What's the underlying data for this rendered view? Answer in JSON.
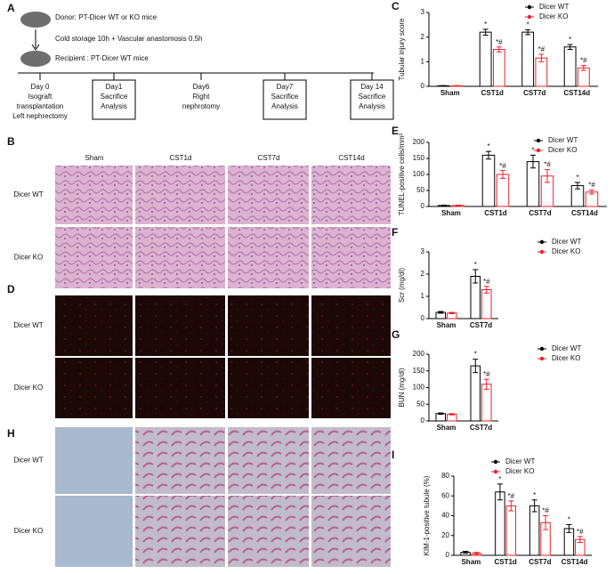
{
  "diagram": {
    "panel": "A",
    "donor": "Donor: PT-Dicer WT or KO mice",
    "storage": "Cold storage 10h  + Vascular anastomosis 0.5h",
    "recipient": "Recipient : PT-Dicer WT mice",
    "steps": [
      {
        "lines": [
          "Day 0",
          "Isograft",
          "transplantation",
          "Left nephrectomy"
        ],
        "boxed": false
      },
      {
        "lines": [
          "Day1",
          "Sacrifice",
          "Analysis"
        ],
        "boxed": true
      },
      {
        "lines": [
          "Day6",
          "Right",
          "nephrotomy"
        ],
        "boxed": false
      },
      {
        "lines": [
          "Day7",
          "Sacrifice",
          "Analysis"
        ],
        "boxed": true
      },
      {
        "lines": [
          "Day 14",
          "Sacrifice",
          "Analysis"
        ],
        "boxed": true
      }
    ]
  },
  "images": [
    {
      "panel": "B",
      "columns": [
        "Sham",
        "CST1d",
        "CST7d",
        "CST14d"
      ],
      "rows": [
        "Dicer WT",
        "Dicer KO"
      ],
      "stain": "he"
    },
    {
      "panel": "D",
      "rows": [
        "Dicer WT",
        "Dicer KO"
      ],
      "stain": "tunel"
    },
    {
      "panel": "H",
      "rows": [
        "Dicer WT",
        "Dicer KO"
      ],
      "stain": "kim"
    }
  ],
  "chart_data": [
    {
      "type": "bar",
      "panel": "C",
      "y_label": "Tubular injury score",
      "categories": [
        "Sham",
        "CST1d",
        "CST7d",
        "CST14d"
      ],
      "ylim": [
        0,
        3
      ],
      "yticks": [
        0,
        1,
        2,
        3
      ],
      "series": [
        {
          "name": "Dicer WT",
          "color": "#000000",
          "values": [
            0.02,
            2.2,
            2.2,
            1.6
          ],
          "errors": [
            0.01,
            0.12,
            0.1,
            0.1
          ],
          "significance": [
            null,
            "*",
            "*",
            "*"
          ]
        },
        {
          "name": "Dicer KO",
          "color": "#e8232a",
          "values": [
            0.02,
            1.5,
            1.15,
            0.75
          ],
          "errors": [
            0.01,
            0.1,
            0.15,
            0.1
          ],
          "significance": [
            null,
            "*#",
            "*#",
            "*#"
          ]
        }
      ]
    },
    {
      "type": "bar",
      "panel": "E",
      "y_label": "TUNEL-positive cells/mm²",
      "categories": [
        "Sham",
        "CST1d",
        "CST7d",
        "CST14d"
      ],
      "ylim": [
        0,
        200
      ],
      "yticks": [
        0,
        50,
        100,
        150,
        200
      ],
      "series": [
        {
          "name": "Dicer WT",
          "color": "#000000",
          "values": [
            3,
            160,
            140,
            65
          ],
          "errors": [
            1,
            12,
            20,
            10
          ],
          "significance": [
            null,
            "*",
            "*",
            "*"
          ]
        },
        {
          "name": "Dicer KO",
          "color": "#e8232a",
          "values": [
            3,
            100,
            95,
            45
          ],
          "errors": [
            1,
            12,
            20,
            6
          ],
          "significance": [
            null,
            "*#",
            "*#",
            "*#"
          ]
        }
      ]
    },
    {
      "type": "bar",
      "panel": "F",
      "y_label": "Scr (mg/dl)",
      "categories": [
        "Sham",
        "CST7d"
      ],
      "ylim": [
        0,
        3
      ],
      "yticks": [
        0,
        1,
        2,
        3
      ],
      "series": [
        {
          "name": "Dicer WT",
          "color": "#000000",
          "values": [
            0.28,
            1.9
          ],
          "errors": [
            0.04,
            0.3
          ],
          "significance": [
            null,
            "*"
          ]
        },
        {
          "name": "Dicer KO",
          "color": "#e8232a",
          "values": [
            0.25,
            1.3
          ],
          "errors": [
            0.03,
            0.15
          ],
          "significance": [
            null,
            "*#"
          ]
        }
      ]
    },
    {
      "type": "bar",
      "panel": "G",
      "y_label": "BUN (mg/dl)",
      "categories": [
        "Sham",
        "CST7d"
      ],
      "ylim": [
        0,
        200
      ],
      "yticks": [
        0,
        50,
        100,
        150,
        200
      ],
      "series": [
        {
          "name": "Dicer WT",
          "color": "#000000",
          "values": [
            22,
            165
          ],
          "errors": [
            2,
            20
          ],
          "significance": [
            null,
            "*"
          ]
        },
        {
          "name": "Dicer KO",
          "color": "#e8232a",
          "values": [
            20,
            110
          ],
          "errors": [
            2,
            15
          ],
          "significance": [
            null,
            "*#"
          ]
        }
      ]
    },
    {
      "type": "bar",
      "panel": "I",
      "y_label": "KIM-1-positive tubule (%)",
      "categories": [
        "Sham",
        "CST1d",
        "CST7d",
        "CST14d"
      ],
      "ylim": [
        0,
        80
      ],
      "yticks": [
        0,
        20,
        40,
        60,
        80
      ],
      "series": [
        {
          "name": "Dicer WT",
          "color": "#000000",
          "values": [
            3,
            64,
            50,
            27
          ],
          "errors": [
            1,
            8,
            6,
            4
          ],
          "significance": [
            null,
            "*",
            "*",
            "*"
          ]
        },
        {
          "name": "Dicer KO",
          "color": "#e8232a",
          "values": [
            2,
            50,
            33,
            16
          ],
          "errors": [
            1,
            5,
            7,
            3
          ],
          "significance": [
            null,
            "*#",
            "*#",
            "*#"
          ]
        }
      ]
    }
  ]
}
